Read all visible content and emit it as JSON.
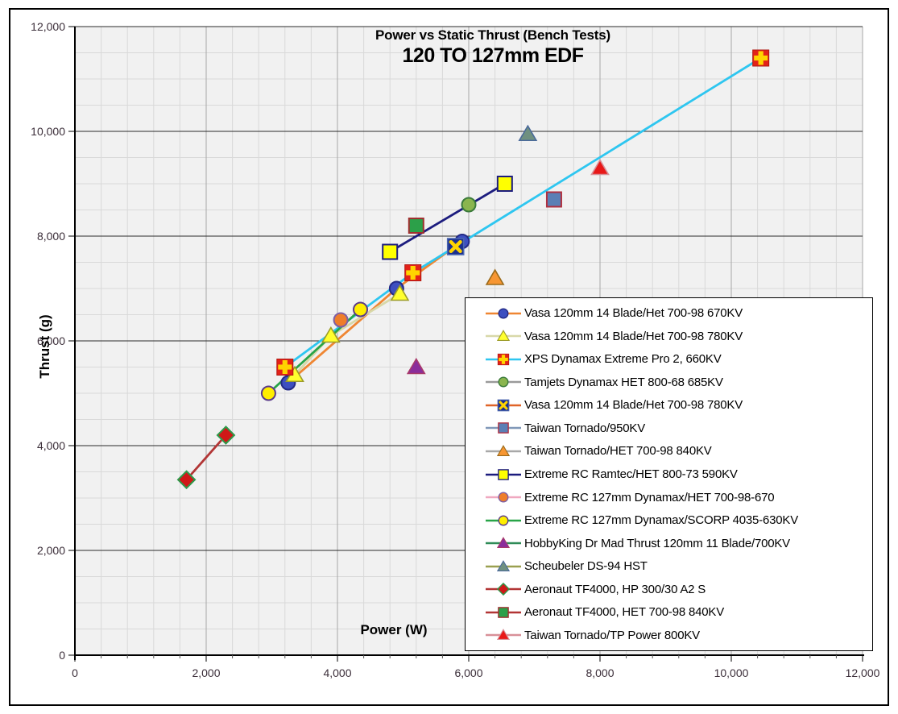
{
  "chart_data": {
    "type": "scatter",
    "title": "Power vs Static Thrust (Bench Tests)",
    "subtitle": "120 TO 127mm  EDF",
    "xlabel": "Power (W)",
    "ylabel": "Thrust (g)",
    "grid": true,
    "legend_position": "right-overlay",
    "x_axis": {
      "min": 0,
      "max": 12000,
      "major": 2000,
      "minor": 400,
      "tick_labels": [
        "0",
        "2,000",
        "4,000",
        "6,000",
        "8,000",
        "10,000",
        "12,000"
      ]
    },
    "y_axis": {
      "min": 0,
      "max": 12000,
      "major": 2000,
      "minor": 500,
      "tick_labels": [
        "0",
        "2,000",
        "4,000",
        "6,000",
        "8,000",
        "10,000",
        "12,000"
      ]
    },
    "series": [
      {
        "name": "Vasa 120mm 14 Blade/Het 700-98 670KV",
        "marker": "circle",
        "fill": "#3d4fc0",
        "edge": "#232a86",
        "line": "#ef8632",
        "points": [
          [
            3250,
            5200
          ],
          [
            4900,
            7000
          ],
          [
            5900,
            7900
          ]
        ]
      },
      {
        "name": "Vasa 120mm 14 Blade/Het 700-98 780KV",
        "marker": "triangle",
        "fill": "#ffff2e",
        "edge": "#9c9c28",
        "line": "#d8d8a8",
        "points": [
          [
            3350,
            5350
          ],
          [
            3900,
            6100
          ],
          [
            4950,
            6900
          ]
        ]
      },
      {
        "name": "XPS Dynamax Extreme Pro 2, 660KV",
        "marker": "square-plus",
        "fill": "#e32219",
        "edge": "#b01810",
        "accent": "#ffd400",
        "line": "#2ec6f0",
        "points": [
          [
            3200,
            5500
          ],
          [
            5150,
            7300
          ],
          [
            10450,
            11400
          ]
        ]
      },
      {
        "name": "Tamjets Dynamax HET 800-68 685KV",
        "marker": "circle",
        "fill": "#8ab54e",
        "edge": "#3a7a3a",
        "line": "#9a9a9a",
        "points": [
          [
            6000,
            8600
          ]
        ]
      },
      {
        "name": "Vasa 120mm 14 Blade/Het 700-98 780KV",
        "marker": "square-x",
        "fill": "#1c2f8e",
        "edge": "#4a66b0",
        "accent": "#ffd400",
        "line": "#e06428",
        "points": [
          [
            5800,
            7800
          ]
        ]
      },
      {
        "name": "Taiwan Tornado/950KV",
        "marker": "square",
        "fill": "#5b7fb5",
        "edge": "#b03040",
        "line": "#8098b8",
        "points": [
          [
            7300,
            8700
          ]
        ]
      },
      {
        "name": "Taiwan Tornado/HET 700-98 840KV",
        "marker": "triangle",
        "fill": "#f79632",
        "edge": "#9a6a1a",
        "line": "#a8a8a8",
        "points": [
          [
            6400,
            7200
          ]
        ]
      },
      {
        "name": "Extreme RC Ramtec/HET 800-73 590KV",
        "marker": "square",
        "fill": "#ffff00",
        "edge": "#1c1c7e",
        "line": "#1c1c7e",
        "points": [
          [
            4800,
            7700
          ],
          [
            6550,
            9000
          ]
        ]
      },
      {
        "name": "Extreme RC 127mm Dynamax/HET 700-98-670",
        "marker": "circle",
        "fill": "#ee7d2a",
        "edge": "#7d5fa5",
        "line": "#f0a8c0",
        "points": [
          [
            4050,
            6400
          ]
        ]
      },
      {
        "name": "Extreme RC 127mm Dynamax/SCORP 4035-630KV",
        "marker": "circle",
        "fill": "#ffee00",
        "edge": "#5a3a8a",
        "line": "#28a448",
        "points": [
          [
            2950,
            5000
          ],
          [
            4350,
            6600
          ]
        ]
      },
      {
        "name": "HobbyKing Dr Mad Thrust 120mm 11 Blade/700KV",
        "marker": "triangle",
        "fill": "#8a2d9b",
        "edge": "#a83a6a",
        "line": "#2e8b57",
        "points": [
          [
            5200,
            5500
          ]
        ]
      },
      {
        "name": "Scheubeler DS-94 HST",
        "marker": "triangle",
        "fill": "#6f9080",
        "edge": "#4a6a9a",
        "line": "#9aa050",
        "points": [
          [
            6900,
            9950
          ]
        ]
      },
      {
        "name": "Aeronaut TF4000, HP 300/30 A2 S",
        "marker": "diamond",
        "fill": "#d01818",
        "edge": "#2e9a4a",
        "line": "#b23535",
        "points": [
          [
            1700,
            3350
          ],
          [
            2300,
            4200
          ]
        ]
      },
      {
        "name": "Aeronaut TF4000, HET 700-98 840KV",
        "marker": "square",
        "fill": "#2ca049",
        "edge": "#a03030",
        "line": "#b23535",
        "points": [
          [
            5200,
            8200
          ]
        ]
      },
      {
        "name": "Taiwan Tornado/TP Power 800KV",
        "marker": "triangle",
        "fill": "#e81818",
        "edge": "#d89098",
        "line": "#d89098",
        "points": [
          [
            8000,
            9300
          ]
        ]
      }
    ]
  },
  "colors": {
    "plot_bg": "#f1f1f1",
    "grid_minor": "#d9d9d9",
    "grid_major_x": "#a6a6a6",
    "grid_major_y": "#2b2b2b",
    "axis": "#000000",
    "tick_label": "#3b2e39",
    "legend_border": "#000000"
  }
}
